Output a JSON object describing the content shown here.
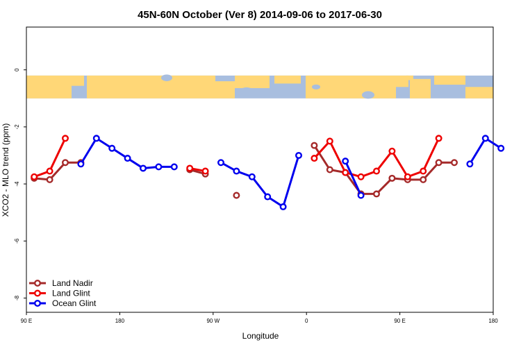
{
  "chart_data": {
    "type": "line",
    "title": "45N-60N October (Ver 8)   2014-09-06 to 2017-06-30",
    "xlabel": "Longitude",
    "ylabel": "XCO2 - MLO trend (ppm)",
    "xlim": [
      90,
      450
    ],
    "ylim": [
      -8.5,
      1.5
    ],
    "x_ticks": [
      {
        "value": 90,
        "label": "90 E"
      },
      {
        "value": 180,
        "label": "180"
      },
      {
        "value": 270,
        "label": "90 W"
      },
      {
        "value": 360,
        "label": "0"
      },
      {
        "value": 450,
        "label": "90 E"
      },
      {
        "value": 540,
        "label": "180"
      }
    ],
    "y_ticks": [
      {
        "value": 0,
        "label": "0"
      },
      {
        "value": -2,
        "label": "-2"
      },
      {
        "value": -4,
        "label": "-4"
      },
      {
        "value": -6,
        "label": "-6"
      },
      {
        "value": -8,
        "label": "-8"
      }
    ],
    "map_band": {
      "y_top": -0.2,
      "y_bottom": -1.0,
      "land_color": "#FFD777",
      "ocean_color": "#A8BEDF"
    },
    "legend_position": "bottom-left",
    "series": [
      {
        "name": "Land Nadir",
        "color": "#A52A2A",
        "points": [
          [
            97.5,
            -3.8
          ],
          [
            112.5,
            -3.85
          ],
          [
            127.5,
            -3.25
          ],
          [
            142.5,
            -3.25
          ],
          null,
          [
            247.5,
            -3.5
          ],
          [
            262.5,
            -3.65
          ],
          null,
          [
            292.5,
            -4.4
          ],
          null,
          [
            367.5,
            -2.65
          ],
          [
            382.5,
            -3.5
          ],
          [
            397.5,
            -3.6
          ],
          [
            412.5,
            -4.35
          ],
          [
            427.5,
            -4.35
          ],
          [
            442.5,
            -3.8
          ],
          [
            457.5,
            -3.85
          ],
          [
            472.5,
            -3.85
          ],
          [
            487.5,
            -3.25
          ],
          [
            502.5,
            -3.25
          ]
        ]
      },
      {
        "name": "Land Glint",
        "color": "#EE0000",
        "points": [
          [
            97.5,
            -3.75
          ],
          [
            112.5,
            -3.55
          ],
          [
            127.5,
            -2.4
          ],
          null,
          [
            247.5,
            -3.45
          ],
          [
            262.5,
            -3.55
          ],
          null,
          [
            367.5,
            -3.1
          ],
          [
            382.5,
            -2.5
          ],
          [
            397.5,
            -3.6
          ],
          [
            412.5,
            -3.75
          ],
          [
            427.5,
            -3.55
          ],
          [
            442.5,
            -2.85
          ],
          [
            457.5,
            -3.75
          ],
          [
            472.5,
            -3.55
          ],
          [
            487.5,
            -2.4
          ]
        ]
      },
      {
        "name": "Ocean Glint",
        "color": "#0000EE",
        "points": [
          [
            142.5,
            -3.3
          ],
          [
            157.5,
            -2.4
          ],
          [
            172.5,
            -2.75
          ],
          [
            187.5,
            -3.1
          ],
          [
            202.5,
            -3.45
          ],
          [
            217.5,
            -3.4
          ],
          [
            232.5,
            -3.4
          ],
          null,
          [
            277.5,
            -3.25
          ],
          [
            292.5,
            -3.55
          ],
          [
            307.5,
            -3.75
          ],
          [
            322.5,
            -4.45
          ],
          [
            337.5,
            -4.8
          ],
          [
            352.5,
            -3.0
          ],
          null,
          [
            397.5,
            -3.2
          ],
          [
            412.5,
            -4.4
          ],
          null,
          [
            517.5,
            -3.3
          ],
          [
            532.5,
            -2.4
          ],
          [
            547.5,
            -2.75
          ]
        ]
      }
    ]
  }
}
